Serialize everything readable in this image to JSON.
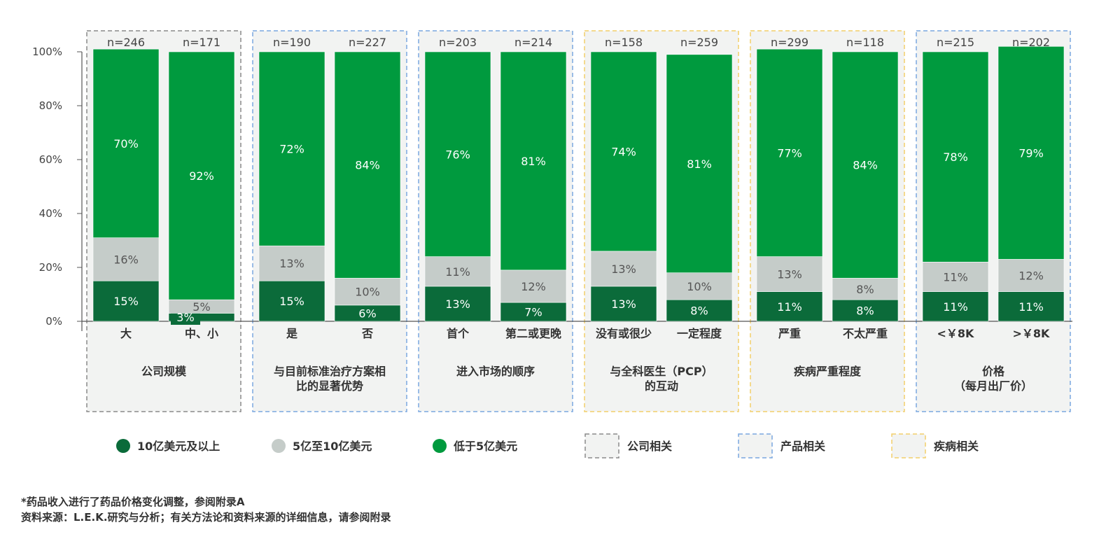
{
  "chart_data": {
    "type": "bar",
    "stacked": true,
    "percent": true,
    "ylim": [
      0,
      100
    ],
    "yticks": [
      "0%",
      "20%",
      "40%",
      "60%",
      "80%",
      "100%"
    ],
    "series": [
      {
        "name": "10亿美元及以上",
        "color": "#0b6b3a"
      },
      {
        "name": "5亿至10亿美元",
        "color": "#c5ccc9"
      },
      {
        "name": "低于5亿美元",
        "color": "#009a3e"
      }
    ],
    "groups": [
      {
        "title": "公司规模",
        "category": "公司相关",
        "bars": [
          {
            "label": "大",
            "n": "n=246",
            "values": [
              15,
              16,
              70
            ]
          },
          {
            "label": "中、小",
            "n": "n=171",
            "values": [
              3,
              5,
              92
            ]
          }
        ]
      },
      {
        "title": "与目前标准治疗方案相\n比的显著优势",
        "category": "产品相关",
        "bars": [
          {
            "label": "是",
            "n": "n=190",
            "values": [
              15,
              13,
              72
            ]
          },
          {
            "label": "否",
            "n": "n=227",
            "values": [
              6,
              10,
              84
            ]
          }
        ]
      },
      {
        "title": "进入市场的顺序",
        "category": "产品相关",
        "bars": [
          {
            "label": "首个",
            "n": "n=203",
            "values": [
              13,
              11,
              76
            ]
          },
          {
            "label": "第二或更晚",
            "n": "n=214",
            "values": [
              7,
              12,
              81
            ]
          }
        ]
      },
      {
        "title": "与全科医生（PCP）\n的互动",
        "category": "疾病相关",
        "bars": [
          {
            "label": "没有或很少",
            "n": "n=158",
            "values": [
              13,
              13,
              74
            ]
          },
          {
            "label": "一定程度",
            "n": "n=259",
            "values": [
              8,
              10,
              81
            ]
          }
        ]
      },
      {
        "title": "疾病严重程度",
        "category": "疾病相关",
        "bars": [
          {
            "label": "严重",
            "n": "n=299",
            "values": [
              11,
              13,
              77
            ]
          },
          {
            "label": "不太严重",
            "n": "n=118",
            "values": [
              8,
              8,
              84
            ]
          }
        ]
      },
      {
        "title": "价格\n（每月出厂价）",
        "category": "产品相关",
        "bars": [
          {
            "label": "<￥8K",
            "n": "n=215",
            "values": [
              11,
              11,
              78
            ]
          },
          {
            "label": ">￥8K",
            "n": "n=202",
            "values": [
              11,
              12,
              79
            ]
          }
        ]
      }
    ],
    "category_legend": [
      {
        "name": "公司相关",
        "border": "#8a8a8a"
      },
      {
        "name": "产品相关",
        "border": "#7aa7e0"
      },
      {
        "name": "疾病相关",
        "border": "#f2cf6b"
      }
    ]
  },
  "notes": {
    "line1": "*药品收入进行了药品价格变化调整，参阅附录A",
    "line2": "资料来源：L.E.K.研究与分析；有关方法论和资料来源的详细信息，请参阅附录"
  }
}
